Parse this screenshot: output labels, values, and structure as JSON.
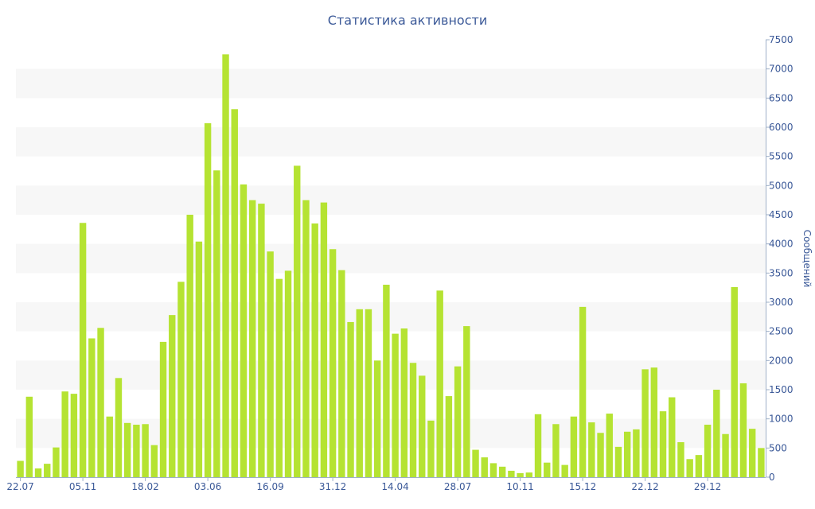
{
  "chart_data": {
    "type": "bar",
    "title": "Статистика активности",
    "ylabel": "Сообщений",
    "xlabel": "",
    "ylim": [
      0,
      7500
    ],
    "y_ticks": [
      0,
      500,
      1000,
      1500,
      2000,
      2500,
      3000,
      3500,
      4000,
      4500,
      5000,
      5500,
      6000,
      6500,
      7000,
      7500
    ],
    "x_tick_labels": [
      {
        "label": "22.07",
        "index": 0
      },
      {
        "label": "05.11",
        "index": 7
      },
      {
        "label": "18.02",
        "index": 14
      },
      {
        "label": "03.06",
        "index": 21
      },
      {
        "label": "16.09",
        "index": 28
      },
      {
        "label": "31.12",
        "index": 35
      },
      {
        "label": "14.04",
        "index": 42
      },
      {
        "label": "28.07",
        "index": 49
      },
      {
        "label": "10.11",
        "index": 56
      },
      {
        "label": "15.12",
        "index": 63
      },
      {
        "label": "22.12",
        "index": 70
      },
      {
        "label": "29.12",
        "index": 77
      }
    ],
    "grid": "alternating-bands",
    "y_axis_position": "right",
    "bar_color": "#b5e332",
    "values": [
      280,
      1380,
      150,
      230,
      510,
      1470,
      1430,
      4360,
      2380,
      2560,
      1040,
      1700,
      930,
      900,
      910,
      550,
      2320,
      2780,
      3350,
      4500,
      4040,
      6070,
      5260,
      7250,
      6310,
      5020,
      4750,
      4690,
      3870,
      3400,
      3540,
      5340,
      4750,
      4350,
      4710,
      3910,
      3550,
      2660,
      2880,
      2880,
      2000,
      3300,
      2460,
      2550,
      1960,
      1740,
      970,
      3200,
      1390,
      1900,
      2590,
      470,
      340,
      240,
      180,
      110,
      70,
      80,
      1080,
      250,
      910,
      210,
      1040,
      2920,
      940,
      760,
      1090,
      520,
      780,
      820,
      1850,
      1880,
      1130,
      1370,
      600,
      310,
      380,
      900,
      1500,
      740,
      3260,
      1610,
      830,
      500
    ]
  }
}
